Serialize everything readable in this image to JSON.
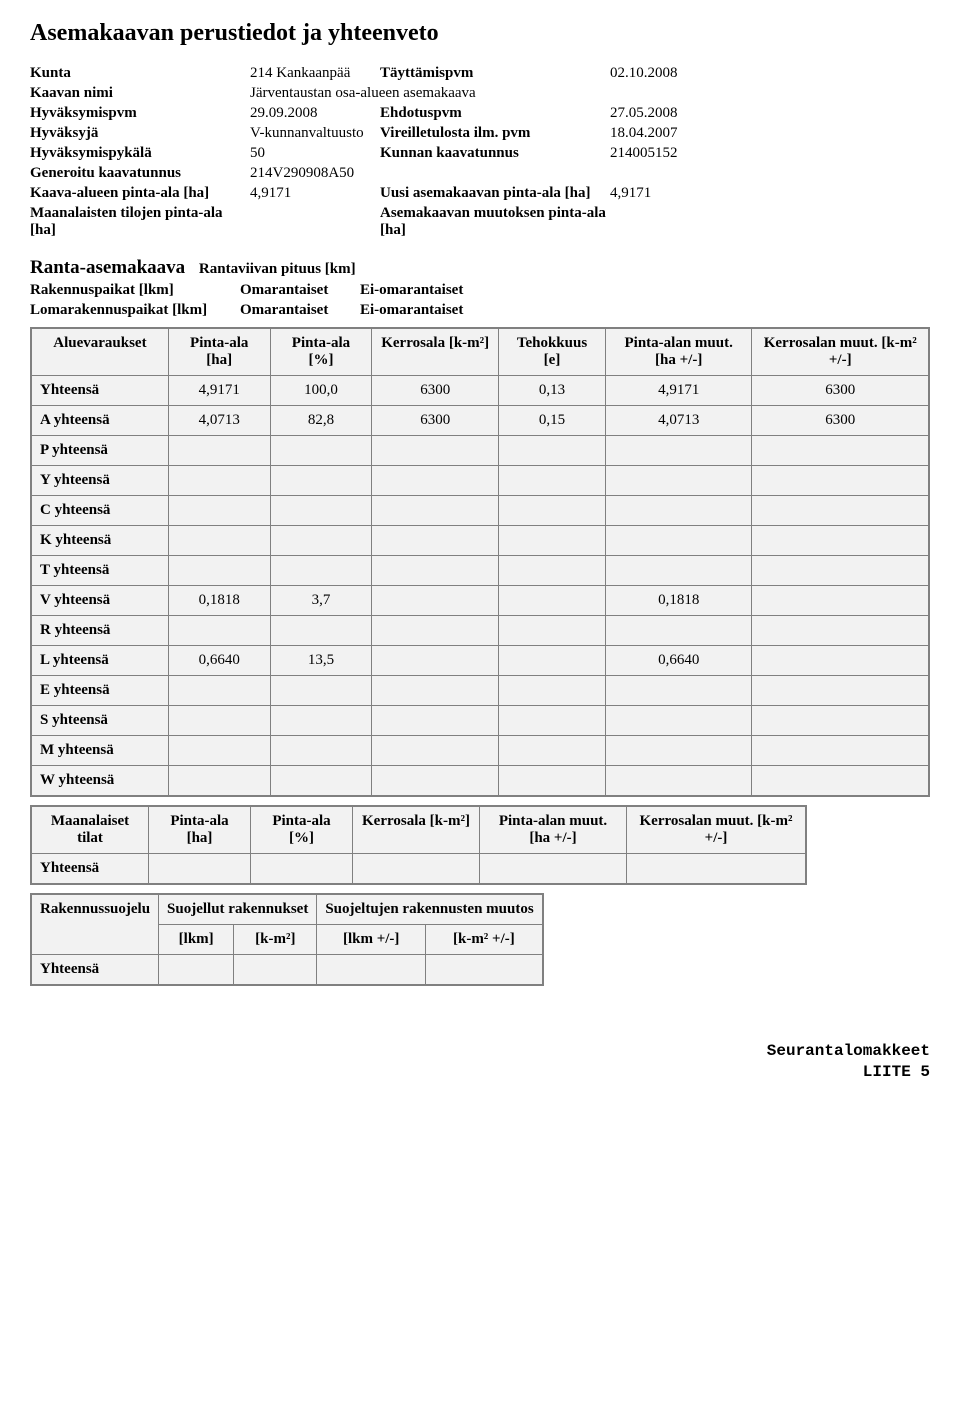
{
  "title": "Asemakaavan perustiedot ja yhteenveto",
  "kv": {
    "rows": [
      [
        "Kunta",
        "214 Kankaanpää",
        "Täyttämispvm",
        "02.10.2008"
      ],
      [
        "Kaavan nimi",
        "Järventaustan osa-alueen asemakaava",
        "",
        ""
      ],
      [
        "Hyväksymispvm",
        "29.09.2008",
        "Ehdotuspvm",
        "27.05.2008"
      ],
      [
        "Hyväksyjä",
        "V-kunnanvaltuusto",
        "Vireilletulosta ilm. pvm",
        "18.04.2007"
      ],
      [
        "Hyväksymispykälä",
        "50",
        "Kunnan kaavatunnus",
        "214005152"
      ],
      [
        "Generoitu kaavatunnus",
        "214V290908A50",
        "",
        ""
      ],
      [
        "Kaava-alueen pinta-ala [ha]",
        "4,9171",
        "Uusi asemakaavan pinta-ala [ha]",
        "4,9171"
      ],
      [
        "Maanalaisten tilojen pinta-ala [ha]",
        "",
        "Asemakaavan muutoksen pinta-ala [ha]",
        ""
      ]
    ]
  },
  "ranta": {
    "title": "Ranta-asemakaava",
    "sub": "Rantaviivan pituus [km]",
    "grid": [
      [
        "Rakennuspaikat [lkm]",
        "Omarantaiset",
        "Ei-omarantaiset"
      ],
      [
        "Lomarakennuspaikat [lkm]",
        "Omarantaiset",
        "Ei-omarantaiset"
      ]
    ]
  },
  "t1": {
    "headers": [
      "Aluevaraukset",
      "Pinta-ala [ha]",
      "Pinta-ala [%]",
      "Kerrosala [k-m²]",
      "Tehokkuus [e]",
      "Pinta-alan muut. [ha +/-]",
      "Kerrosalan muut. [k-m² +/-]"
    ],
    "rows": [
      [
        "Yhteensä",
        "4,9171",
        "100,0",
        "6300",
        "0,13",
        "4,9171",
        "6300"
      ],
      [
        "A yhteensä",
        "4,0713",
        "82,8",
        "6300",
        "0,15",
        "4,0713",
        "6300"
      ],
      [
        "P yhteensä",
        "",
        "",
        "",
        "",
        "",
        ""
      ],
      [
        "Y yhteensä",
        "",
        "",
        "",
        "",
        "",
        ""
      ],
      [
        "C yhteensä",
        "",
        "",
        "",
        "",
        "",
        ""
      ],
      [
        "K yhteensä",
        "",
        "",
        "",
        "",
        "",
        ""
      ],
      [
        "T yhteensä",
        "",
        "",
        "",
        "",
        "",
        ""
      ],
      [
        "V yhteensä",
        "0,1818",
        "3,7",
        "",
        "",
        "0,1818",
        ""
      ],
      [
        "R yhteensä",
        "",
        "",
        "",
        "",
        "",
        ""
      ],
      [
        "L yhteensä",
        "0,6640",
        "13,5",
        "",
        "",
        "0,6640",
        ""
      ],
      [
        "E yhteensä",
        "",
        "",
        "",
        "",
        "",
        ""
      ],
      [
        "S yhteensä",
        "",
        "",
        "",
        "",
        "",
        ""
      ],
      [
        "M yhteensä",
        "",
        "",
        "",
        "",
        "",
        ""
      ],
      [
        "W yhteensä",
        "",
        "",
        "",
        "",
        "",
        ""
      ]
    ]
  },
  "t2": {
    "headers": [
      "Maanalaiset tilat",
      "Pinta-ala [ha]",
      "Pinta-ala [%]",
      "Kerrosala [k-m²]",
      "Pinta-alan muut. [ha +/-]",
      "Kerrosalan muut. [k-m² +/-]"
    ],
    "rows": [
      [
        "Yhteensä",
        "",
        "",
        "",
        "",
        ""
      ]
    ]
  },
  "t3": {
    "corner": "Rakennussuojelu",
    "group1": "Suojellut rakennukset",
    "group2": "Suojeltujen rakennusten muutos",
    "sub": [
      "[lkm]",
      "[k-m²]",
      "[lkm +/-]",
      "[k-m² +/-]"
    ],
    "rows": [
      [
        "Yhteensä",
        "",
        "",
        "",
        ""
      ]
    ]
  },
  "footer": {
    "l1": "Seurantalomakkeet",
    "l2": "LIITE 5"
  }
}
